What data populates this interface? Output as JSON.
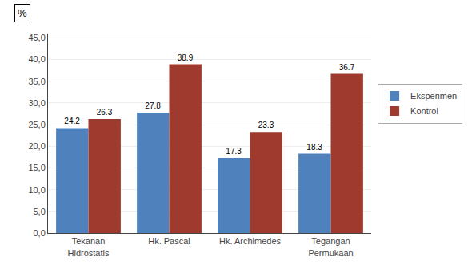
{
  "chart_data": {
    "type": "bar",
    "categories": [
      "Tekanan\nHidrostatis",
      "Hk. Pascal",
      "Hk. Archimedes",
      "Tegangan\nPermukaan"
    ],
    "series": [
      {
        "name": "Eksperimen",
        "color": "#4F81BD",
        "values": [
          24.2,
          27.8,
          17.3,
          18.3
        ]
      },
      {
        "name": "Kontrol",
        "color": "#9E3B2E",
        "values": [
          26.3,
          38.9,
          23.3,
          36.7
        ]
      }
    ],
    "ylim": [
      0,
      46
    ],
    "yticks": [
      {
        "value": 0,
        "label": "0,0"
      },
      {
        "value": 5,
        "label": "5,0"
      },
      {
        "value": 10,
        "label": "10,0"
      },
      {
        "value": 15,
        "label": "15,0"
      },
      {
        "value": 20,
        "label": "20,0"
      },
      {
        "value": 25,
        "label": "25,0"
      },
      {
        "value": 30,
        "label": "30,0"
      },
      {
        "value": 35,
        "label": "35,0"
      },
      {
        "value": 40,
        "label": "40,0"
      },
      {
        "value": 45,
        "label": "45,0"
      }
    ],
    "annotations": [
      "%"
    ],
    "grid": true,
    "legend": "right",
    "data_labels": true
  }
}
